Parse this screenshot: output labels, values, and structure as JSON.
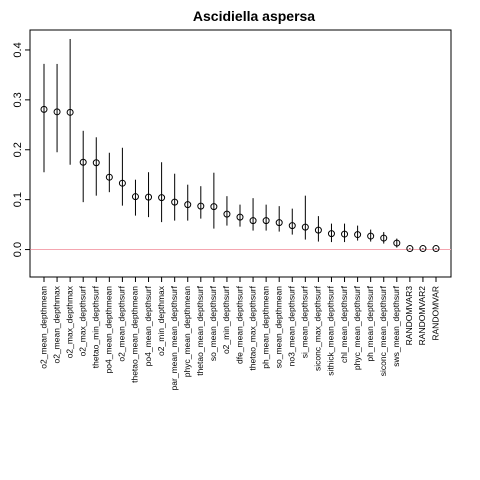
{
  "chart_data": {
    "type": "scatter",
    "title": "Ascidiella aspersa",
    "xlabel": "",
    "ylabel": "",
    "ylim": [
      -0.055,
      0.44
    ],
    "yticks": [
      0.0,
      0.1,
      0.2,
      0.3,
      0.4
    ],
    "ytick_labels": [
      "0.0",
      "0.1",
      "0.2",
      "0.3",
      "0.4"
    ],
    "reference_line": {
      "y": 0,
      "color": "#f4a6b0"
    },
    "grid": false,
    "legend": "none",
    "categories": [
      "o2_mean_depthmean",
      "o2_mean_depthmax",
      "o2_max_depthmax",
      "o2_max_depthsurf",
      "thetao_min_depthsurf",
      "po4_mean_depthmean",
      "o2_mean_depthsurf",
      "thetao_mean_depthmean",
      "po4_mean_depthsurf",
      "o2_min_depthmax",
      "par_mean_mean_depthsurf",
      "phyc_mean_depthmean",
      "thetao_mean_depthsurf",
      "so_mean_depthsurf",
      "o2_min_depthsurf",
      "dfe_mean_depthsurf",
      "thetao_max_depthsurf",
      "ph_mean_depthmean",
      "so_mean_depthmean",
      "no3_mean_depthsurf",
      "si_mean_depthsurf",
      "siconc_max_depthsurf",
      "sithick_mean_depthsurf",
      "chl_mean_depthsurf",
      "phyc_mean_depthsurf",
      "ph_mean_depthsurf",
      "siconc_mean_depthsurf",
      "sws_mean_depthsurf",
      "RANDOMVAR3",
      "RANDOMVAR2",
      "RANDOMVAR"
    ],
    "values": [
      0.281,
      0.276,
      0.275,
      0.175,
      0.174,
      0.145,
      0.133,
      0.106,
      0.105,
      0.104,
      0.095,
      0.09,
      0.087,
      0.086,
      0.071,
      0.065,
      0.058,
      0.058,
      0.054,
      0.048,
      0.045,
      0.039,
      0.032,
      0.031,
      0.03,
      0.027,
      0.023,
      0.013,
      0.002,
      0.002,
      0.002
    ],
    "lower": [
      0.155,
      0.195,
      0.17,
      0.095,
      0.108,
      0.115,
      0.088,
      0.068,
      0.065,
      0.055,
      0.058,
      0.058,
      0.062,
      0.042,
      0.048,
      0.046,
      0.038,
      0.038,
      0.036,
      0.03,
      0.02,
      0.016,
      0.015,
      0.015,
      0.018,
      0.016,
      0.012,
      0.004,
      0.001,
      0.001,
      0.001
    ],
    "upper": [
      0.372,
      0.372,
      0.422,
      0.238,
      0.225,
      0.194,
      0.204,
      0.14,
      0.155,
      0.175,
      0.152,
      0.13,
      0.127,
      0.154,
      0.107,
      0.09,
      0.103,
      0.09,
      0.087,
      0.082,
      0.108,
      0.067,
      0.052,
      0.052,
      0.048,
      0.04,
      0.035,
      0.022,
      0.003,
      0.003,
      0.003
    ]
  }
}
